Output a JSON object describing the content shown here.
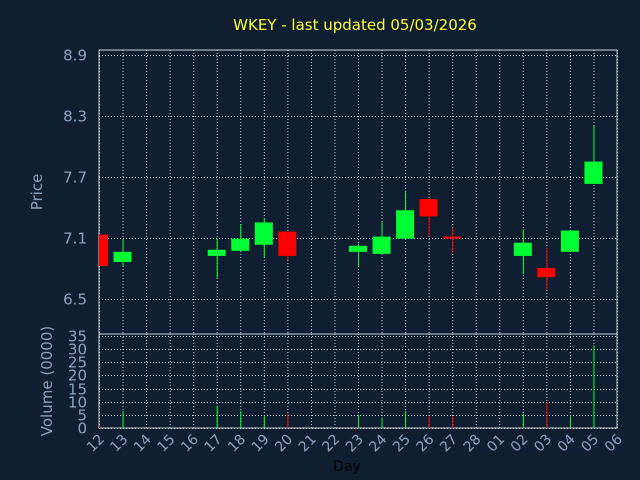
{
  "chart_data": [
    {
      "type": "candlestick",
      "title": "WKEY - last updated 05/03/2026",
      "ylabel": "Price",
      "ylim": [
        6.15,
        8.95
      ],
      "yticks": [
        8.9,
        8.3,
        7.7,
        7.1,
        6.5
      ],
      "grid": true,
      "colors": {
        "up": "#00ff33",
        "down": "#ff0000",
        "grid": "#c8d0d8",
        "background": "#0f1f31",
        "title": "#ffff33",
        "axis_text": "#8aa2c0"
      },
      "x": [
        {
          "label": "12",
          "slot": 0.0
        },
        {
          "label": "13",
          "slot": 1.0
        },
        {
          "label": "14",
          "slot": 2.0
        },
        {
          "label": "15",
          "slot": 3.0
        },
        {
          "label": "16",
          "slot": 4.0
        },
        {
          "label": "17",
          "slot": 5.0
        },
        {
          "label": "18",
          "slot": 6.0
        },
        {
          "label": "19",
          "slot": 7.0
        },
        {
          "label": "20",
          "slot": 8.0
        },
        {
          "label": "21",
          "slot": 9.0
        },
        {
          "label": "22",
          "slot": 10.0
        },
        {
          "label": "23",
          "slot": 11.0
        },
        {
          "label": "24",
          "slot": 12.0
        },
        {
          "label": "25",
          "slot": 13.0
        },
        {
          "label": "26",
          "slot": 14.0
        },
        {
          "label": "27",
          "slot": 15.0
        },
        {
          "label": "28",
          "slot": 16.0
        },
        {
          "label": "01",
          "slot": 17.0
        },
        {
          "label": "02",
          "slot": 18.0
        },
        {
          "label": "03",
          "slot": 19.0
        },
        {
          "label": "04",
          "slot": 20.0
        },
        {
          "label": "05",
          "slot": 21.0
        },
        {
          "label": "06",
          "slot": 22.0
        }
      ],
      "candles": [
        {
          "slot": 0.0,
          "open": 7.13,
          "high": 7.13,
          "low": 6.82,
          "close": 6.82,
          "color": "down"
        },
        {
          "slot": 1.0,
          "open": 6.86,
          "high": 7.09,
          "low": 6.82,
          "close": 6.96,
          "color": "up"
        },
        {
          "slot": 5.0,
          "open": 6.92,
          "high": 7.09,
          "low": 6.7,
          "close": 6.98,
          "color": "up"
        },
        {
          "slot": 6.0,
          "open": 6.97,
          "high": 7.23,
          "low": 6.97,
          "close": 7.09,
          "color": "up"
        },
        {
          "slot": 7.0,
          "open": 7.03,
          "high": 7.29,
          "low": 6.91,
          "close": 7.25,
          "color": "up"
        },
        {
          "slot": 8.0,
          "open": 7.16,
          "high": 7.16,
          "low": 6.88,
          "close": 6.92,
          "color": "down"
        },
        {
          "slot": 11.0,
          "open": 6.96,
          "high": 7.04,
          "low": 6.81,
          "close": 7.02,
          "color": "up"
        },
        {
          "slot": 12.0,
          "open": 6.94,
          "high": 7.25,
          "low": 6.94,
          "close": 7.11,
          "color": "up"
        },
        {
          "slot": 13.0,
          "open": 7.09,
          "high": 7.56,
          "low": 7.09,
          "close": 7.37,
          "color": "up"
        },
        {
          "slot": 14.0,
          "open": 7.48,
          "high": 7.48,
          "low": 7.12,
          "close": 7.31,
          "color": "down"
        },
        {
          "slot": 15.0,
          "open": 7.11,
          "high": 7.2,
          "low": 6.95,
          "close": 7.09,
          "color": "down"
        },
        {
          "slot": 18.0,
          "open": 6.92,
          "high": 7.18,
          "low": 6.74,
          "close": 7.05,
          "color": "up"
        },
        {
          "slot": 19.0,
          "open": 6.8,
          "high": 7.0,
          "low": 6.59,
          "close": 6.71,
          "color": "down"
        },
        {
          "slot": 20.0,
          "open": 6.96,
          "high": 7.17,
          "low": 6.96,
          "close": 7.17,
          "color": "up"
        },
        {
          "slot": 21.0,
          "open": 7.63,
          "high": 8.2,
          "low": 7.63,
          "close": 7.85,
          "color": "up"
        }
      ]
    },
    {
      "type": "bar",
      "ylabel": "Volume (0000)",
      "xlabel": "Day",
      "ylim": [
        0,
        35
      ],
      "yticks": [
        35,
        30,
        25,
        20,
        15,
        10,
        5,
        0
      ],
      "grid": true,
      "bars": [
        {
          "slot": 0.0,
          "value": 0.5,
          "color": "down"
        },
        {
          "slot": 1.0,
          "value": 6.5,
          "color": "up"
        },
        {
          "slot": 5.0,
          "value": 8.5,
          "color": "up"
        },
        {
          "slot": 6.0,
          "value": 6.5,
          "color": "up"
        },
        {
          "slot": 7.0,
          "value": 4.5,
          "color": "up"
        },
        {
          "slot": 8.0,
          "value": 5.5,
          "color": "down"
        },
        {
          "slot": 11.0,
          "value": 5.0,
          "color": "up"
        },
        {
          "slot": 12.0,
          "value": 4.0,
          "color": "up"
        },
        {
          "slot": 13.0,
          "value": 6.5,
          "color": "up"
        },
        {
          "slot": 14.0,
          "value": 4.5,
          "color": "down"
        },
        {
          "slot": 15.0,
          "value": 4.5,
          "color": "down"
        },
        {
          "slot": 18.0,
          "value": 5.5,
          "color": "up"
        },
        {
          "slot": 19.0,
          "value": 10.0,
          "color": "down"
        },
        {
          "slot": 20.0,
          "value": 4.5,
          "color": "up"
        },
        {
          "slot": 21.0,
          "value": 31.5,
          "color": "up"
        }
      ]
    }
  ]
}
